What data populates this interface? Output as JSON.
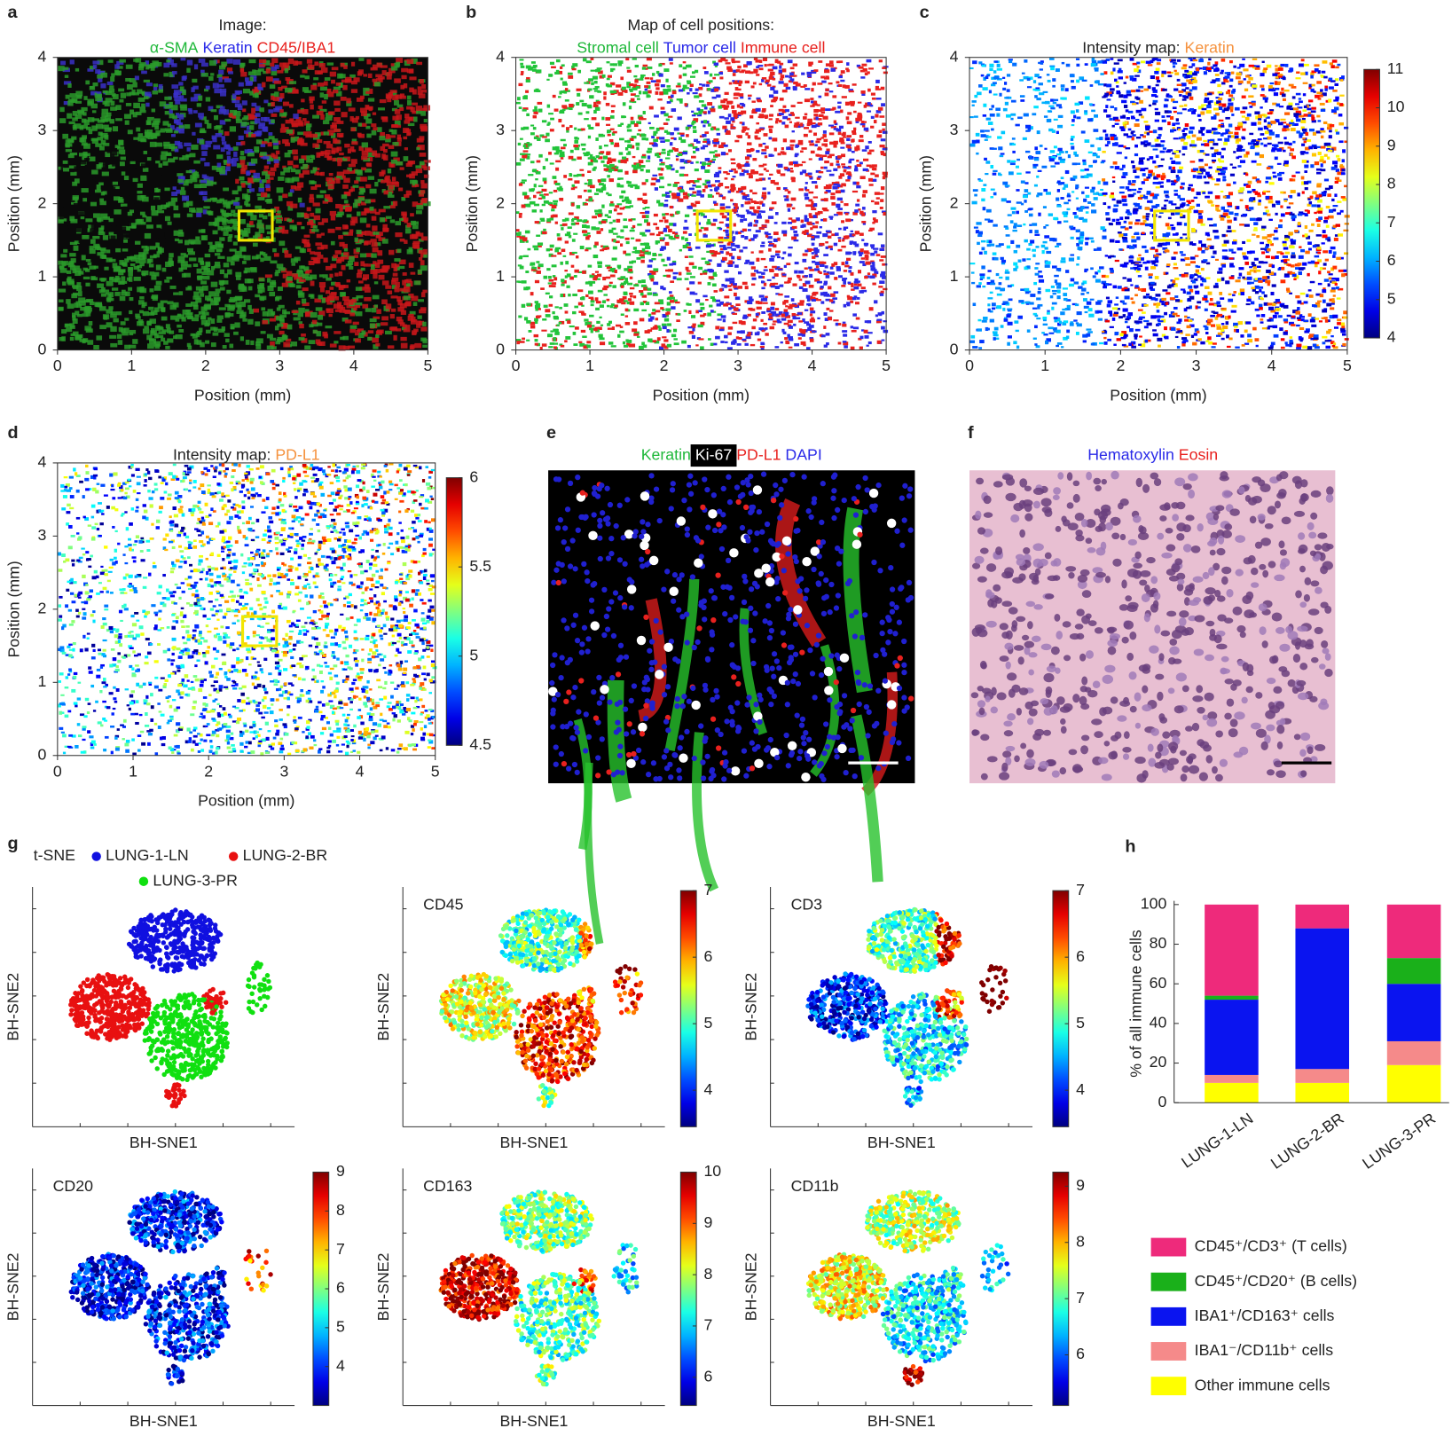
{
  "chart_data": [
    {
      "label": "a",
      "type": "image-map",
      "title": "Image:",
      "series": [
        {
          "name": "α-SMA",
          "color": "#1fb83a"
        },
        {
          "name": "Keratin",
          "color": "#2a2ae8"
        },
        {
          "name": "CD45/IBA1",
          "color": "#e8211e"
        }
      ],
      "xlabel": "Position (mm)",
      "ylabel": "Position (mm)",
      "xlim": [
        0,
        5
      ],
      "ylim": [
        0,
        4
      ],
      "xticks": [
        0,
        1,
        2,
        3,
        4,
        5
      ],
      "yticks": [
        0,
        1,
        2,
        3,
        4
      ]
    },
    {
      "label": "b",
      "type": "image-map",
      "title": "Map of cell positions:",
      "series": [
        {
          "name": "Stromal cell",
          "color": "#1fb83a"
        },
        {
          "name": "Tumor cell",
          "color": "#2a2ae8"
        },
        {
          "name": "Immune cell",
          "color": "#e8211e"
        }
      ],
      "xlabel": "Position (mm)",
      "ylabel": "Position (mm)",
      "xlim": [
        0,
        5
      ],
      "ylim": [
        0,
        4
      ],
      "xticks": [
        0,
        1,
        2,
        3,
        4,
        5
      ],
      "yticks": [
        0,
        1,
        2,
        3,
        4
      ]
    },
    {
      "label": "c",
      "type": "image-map",
      "title": "Intensity map:",
      "series": [
        {
          "name": "Keratin",
          "color": "#f5923e"
        }
      ],
      "xlabel": "Position (mm)",
      "ylabel": "Position (mm)",
      "xlim": [
        0,
        5
      ],
      "ylim": [
        0,
        4
      ],
      "xticks": [
        0,
        1,
        2,
        3,
        4,
        5
      ],
      "yticks": [
        0,
        1,
        2,
        3,
        4
      ],
      "clim": [
        4,
        11
      ],
      "cticks": [
        4,
        5,
        6,
        7,
        8,
        9,
        10,
        11
      ]
    },
    {
      "label": "d",
      "type": "image-map",
      "title": "Intensity map:",
      "series": [
        {
          "name": "PD-L1",
          "color": "#f5923e"
        }
      ],
      "xlabel": "Position (mm)",
      "ylabel": "Position (mm)",
      "xlim": [
        0,
        5
      ],
      "ylim": [
        0,
        4
      ],
      "xticks": [
        0,
        1,
        2,
        3,
        4,
        5
      ],
      "yticks": [
        0,
        1,
        2,
        3,
        4
      ],
      "clim": [
        4.5,
        6
      ],
      "cticks": [
        4.5,
        5,
        5.5,
        6
      ]
    },
    {
      "label": "e",
      "type": "image",
      "series": [
        {
          "name": "Keratin",
          "color": "#1fb83a"
        },
        {
          "name": "Ki-67",
          "color": "#ffffff",
          "box": "#000000"
        },
        {
          "name": "PD-L1",
          "color": "#e8211e"
        },
        {
          "name": "DAPI",
          "color": "#2a2ae8"
        }
      ]
    },
    {
      "label": "f",
      "type": "image",
      "series": [
        {
          "name": "Hematoxylin",
          "color": "#2a2ae8"
        },
        {
          "name": "Eosin",
          "color": "#e8211e"
        }
      ]
    },
    {
      "label": "g",
      "type": "tsne",
      "title": "t-SNE",
      "series": [
        {
          "name": "LUNG-1-LN",
          "color": "#1010e0"
        },
        {
          "name": "LUNG-2-BR",
          "color": "#e81010"
        },
        {
          "name": "LUNG-3-PR",
          "color": "#10e010"
        }
      ],
      "xlabel": "BH-SNE1",
      "ylabel": "BH-SNE2",
      "panels": [
        {
          "title": "CD45",
          "clim": [
            3.45,
            7
          ],
          "cticks": [
            4,
            5,
            6,
            7
          ]
        },
        {
          "title": "CD3",
          "clim": [
            3.45,
            7
          ],
          "cticks": [
            4,
            5,
            6,
            7
          ]
        },
        {
          "title": "CD20",
          "clim": [
            3,
            9
          ],
          "cticks": [
            4,
            5,
            6,
            7,
            8,
            9
          ]
        },
        {
          "title": "CD163",
          "clim": [
            5.45,
            10
          ],
          "cticks": [
            6,
            7,
            8,
            9,
            10
          ]
        },
        {
          "title": "CD11b",
          "clim": [
            5.1,
            9.25
          ],
          "cticks": [
            6,
            7,
            8,
            9
          ]
        }
      ]
    },
    {
      "label": "h",
      "type": "bar",
      "stacked": true,
      "ylabel": "% of all immune cells",
      "categories": [
        "LUNG-1-LN",
        "LUNG-2-BR",
        "LUNG-3-PR"
      ],
      "series": [
        {
          "name": "Other immune cells",
          "color": "#ffff00",
          "values": [
            10,
            10,
            19
          ]
        },
        {
          "name": "IBA1⁻/CD11b⁺ cells",
          "color": "#f58a8a",
          "values": [
            4,
            7,
            12
          ]
        },
        {
          "name": "IBA1⁺/CD163⁺ cells",
          "color": "#0a14f0",
          "values": [
            38,
            71,
            29
          ]
        },
        {
          "name": "CD45⁺/CD20⁺ (B cells)",
          "color": "#1ab01a",
          "values": [
            2,
            0,
            13
          ]
        },
        {
          "name": "CD45⁺/CD3⁺ (T cells)",
          "color": "#ee2a7b",
          "values": [
            46,
            12,
            27
          ]
        }
      ],
      "ylim": [
        0,
        100
      ],
      "yticks": [
        0,
        20,
        40,
        60,
        80,
        100
      ]
    }
  ]
}
